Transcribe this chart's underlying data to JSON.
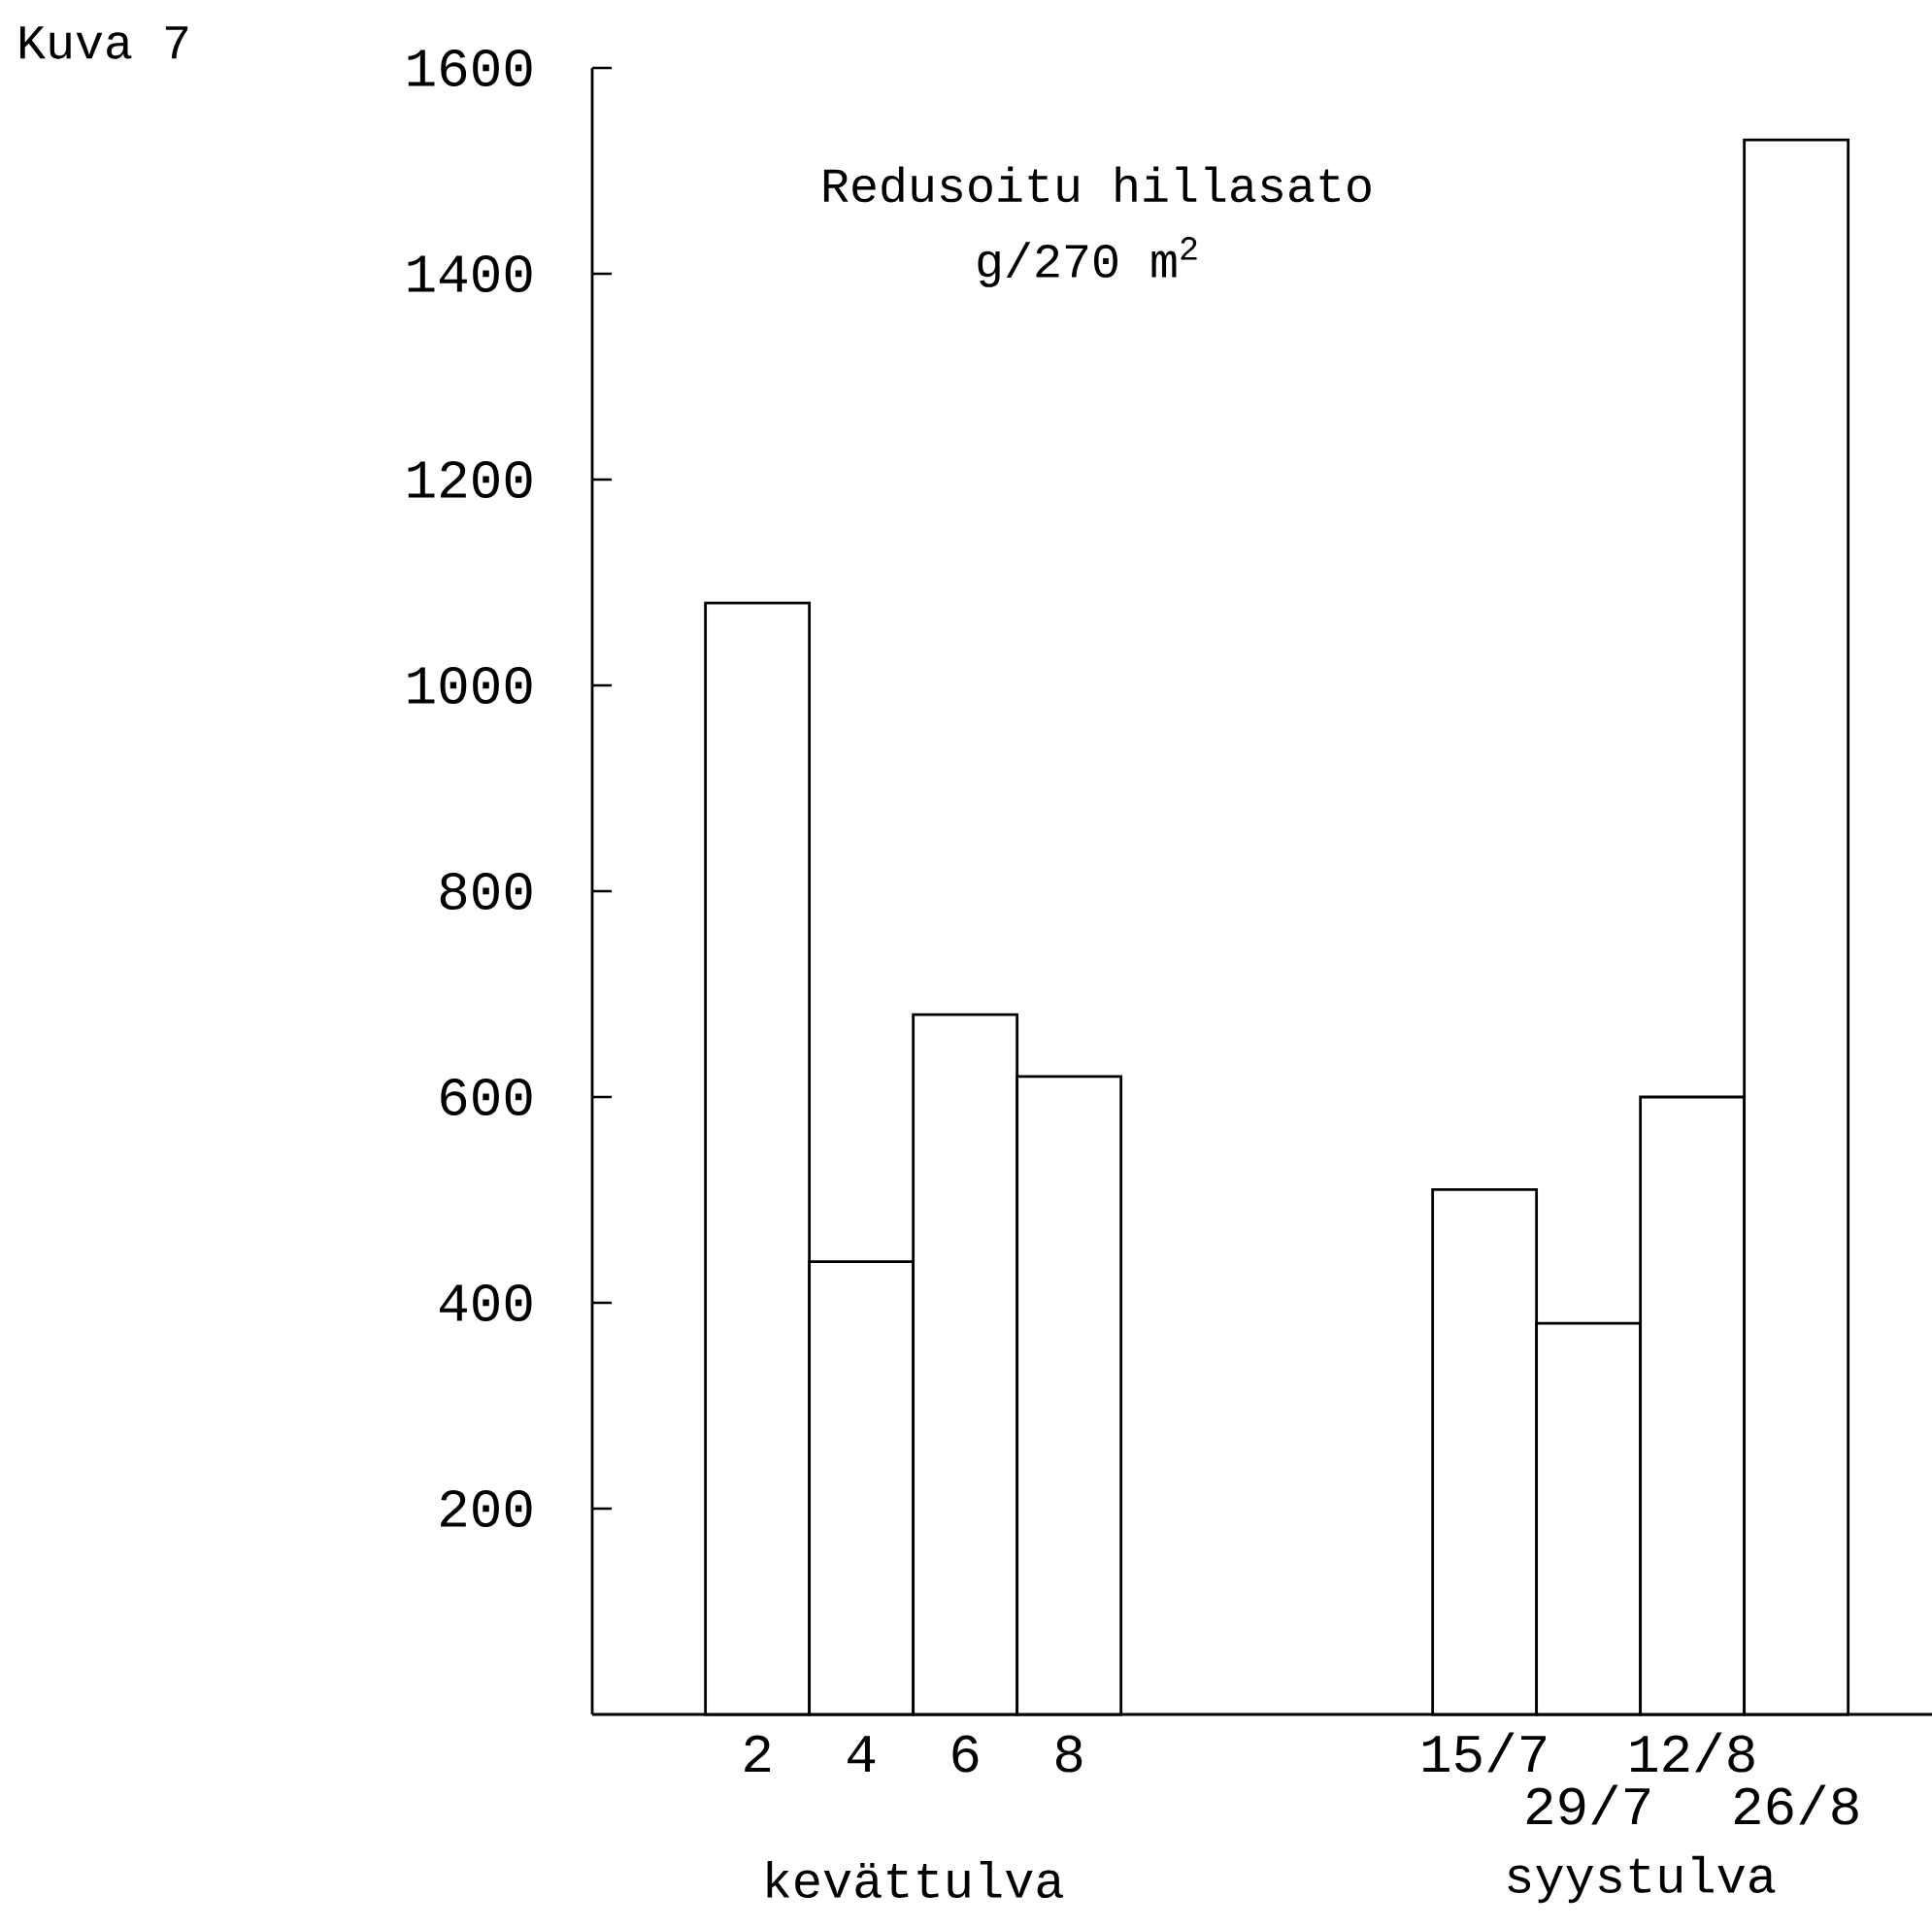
{
  "chart_data": {
    "type": "bar",
    "title": "Kuva 7",
    "subtitle": "Redusoitu hillasato",
    "ylabel": "g/270 m$^{2}$",
    "annotations": [
      "kevättulva",
      "syystulva"
    ],
    "categories": [
      "2",
      "4",
      "6",
      "8",
      null,
      null,
      null,
      "15/7",
      "29/7",
      "12/8",
      "26/8"
    ],
    "values": [
      1080,
      440,
      680,
      620,
      null,
      null,
      null,
      510,
      380,
      600,
      1530
    ],
    "ylim": [
      0,
      1600
    ],
    "yticks": [
      200,
      400,
      600,
      800,
      1000,
      1200,
      1400,
      1600
    ]
  }
}
